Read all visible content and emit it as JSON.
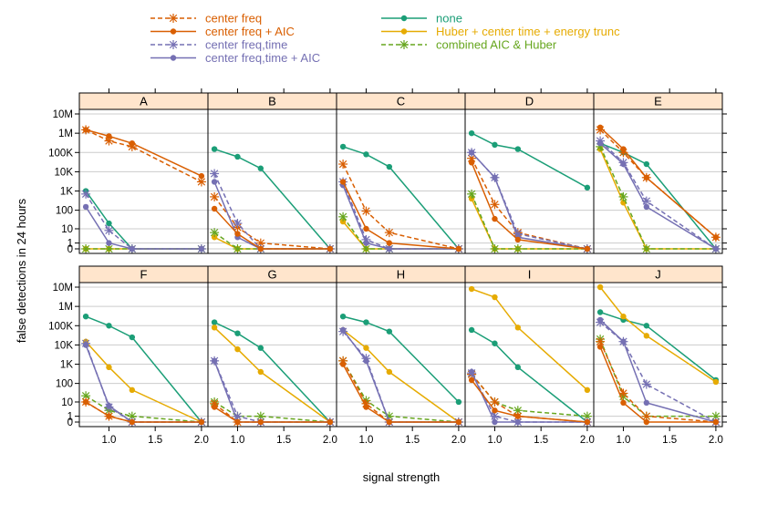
{
  "chart_data": {
    "type": "line",
    "xlabel": "signal strength",
    "ylabel": "false detections in 24 hours",
    "x": [
      0.75,
      1.0,
      1.25,
      2.0
    ],
    "x_ticks": [
      1.0,
      1.5,
      2.0
    ],
    "x_tick_labels": [
      "1.0",
      "1.5",
      "2.0"
    ],
    "xlim": [
      0.68,
      2.07
    ],
    "y_scale": "log(1+y)",
    "y_ticks": [
      0,
      1,
      10,
      100,
      1000,
      10000,
      100000,
      1000000,
      10000000
    ],
    "y_tick_labels": [
      "0",
      "1",
      "10",
      "100",
      "1K",
      "10K",
      "100K",
      "1M",
      "10M"
    ],
    "ylim": [
      0,
      10000000
    ],
    "legend": {
      "placement": "top",
      "left": [
        {
          "name": "center freq",
          "line": "dashed",
          "marker": "star",
          "color": "#d95f02"
        },
        {
          "name": "center freq + AIC",
          "line": "solid",
          "marker": "dot",
          "color": "#d95f02"
        },
        {
          "name": "center freq,time",
          "line": "dashed",
          "marker": "star",
          "color": "#7570b3"
        },
        {
          "name": "center freq,time + AIC",
          "line": "solid",
          "marker": "dot",
          "color": "#7570b3"
        }
      ],
      "right": [
        {
          "name": "none",
          "line": "solid",
          "marker": "dot",
          "color": "#1b9e77"
        },
        {
          "name": "Huber + center time + energy trunc",
          "line": "solid",
          "marker": "dot",
          "color": "#e6ab02"
        },
        {
          "name": "combined AIC & Huber",
          "line": "dashed",
          "marker": "star",
          "color": "#66a61e"
        }
      ]
    },
    "series_styles": {
      "none": {
        "color": "#1b9e77",
        "dash": false,
        "marker": "dot"
      },
      "cf": {
        "color": "#d95f02",
        "dash": true,
        "marker": "star"
      },
      "cfa": {
        "color": "#d95f02",
        "dash": false,
        "marker": "dot"
      },
      "cft": {
        "color": "#7570b3",
        "dash": true,
        "marker": "star"
      },
      "cfta": {
        "color": "#7570b3",
        "dash": false,
        "marker": "dot"
      },
      "huber": {
        "color": "#e6ab02",
        "dash": false,
        "marker": "dot"
      },
      "comb": {
        "color": "#66a61e",
        "dash": true,
        "marker": "star"
      }
    },
    "panels": [
      {
        "label": "A",
        "series": {
          "cf": [
            1500000,
            400000,
            200000,
            3000
          ],
          "cfa": [
            1500000,
            700000,
            300000,
            6000
          ],
          "cft": [
            700,
            8,
            0,
            0
          ],
          "cfta": [
            150,
            1,
            0,
            0
          ],
          "none": [
            1000,
            20,
            0,
            0
          ],
          "huber": [
            0,
            0,
            0,
            0
          ],
          "comb": [
            0,
            0,
            0,
            0
          ]
        }
      },
      {
        "label": "B",
        "series": {
          "none": [
            150000,
            60000,
            15000,
            0
          ],
          "cf": [
            500,
            12,
            1,
            0
          ],
          "cfa": [
            120,
            5,
            0,
            0
          ],
          "cft": [
            8000,
            20,
            0,
            0
          ],
          "cfta": [
            3000,
            3,
            0,
            0
          ],
          "huber": [
            3,
            0,
            0,
            0
          ],
          "comb": [
            6,
            0,
            0,
            0
          ]
        }
      },
      {
        "label": "C",
        "series": {
          "none": [
            200000,
            80000,
            18000,
            0
          ],
          "cf": [
            25000,
            90,
            6,
            0
          ],
          "cfa": [
            3000,
            10,
            1,
            0
          ],
          "cft": [
            3000,
            2,
            0,
            0
          ],
          "cfta": [
            2000,
            1,
            0,
            0
          ],
          "huber": [
            25,
            0,
            0,
            0
          ],
          "comb": [
            45,
            0,
            0,
            0
          ]
        }
      },
      {
        "label": "D",
        "series": {
          "none": [
            1000000,
            250000,
            150000,
            1500
          ],
          "cf": [
            50000,
            200,
            6,
            0
          ],
          "cfa": [
            30000,
            35,
            2,
            0
          ],
          "cft": [
            100000,
            5000,
            5,
            0
          ],
          "cfta": [
            100000,
            5000,
            3,
            0
          ],
          "huber": [
            400,
            0,
            0,
            0
          ],
          "comb": [
            700,
            0,
            0,
            0
          ]
        }
      },
      {
        "label": "E",
        "series": {
          "none": [
            300000,
            100000,
            25000,
            0
          ],
          "cf": [
            1500000,
            100000,
            5000,
            3
          ],
          "cfa": [
            2000000,
            150000,
            5000,
            3
          ],
          "cft": [
            400000,
            30000,
            300,
            0
          ],
          "cfta": [
            300000,
            25000,
            150,
            0
          ],
          "huber": [
            150000,
            250,
            0,
            0
          ],
          "comb": [
            200000,
            500,
            0,
            0
          ]
        }
      },
      {
        "label": "F",
        "series": {
          "none": [
            300000,
            100000,
            25000,
            0
          ],
          "cf": [
            10,
            1,
            0,
            0
          ],
          "cfa": [
            10,
            1,
            0,
            0
          ],
          "cft": [
            12000,
            5,
            0,
            0
          ],
          "cfta": [
            10000,
            6,
            0,
            0
          ],
          "huber": [
            15000,
            700,
            45,
            0
          ],
          "comb": [
            22,
            3,
            1,
            0
          ]
        }
      },
      {
        "label": "G",
        "series": {
          "none": [
            150000,
            40000,
            7000,
            0
          ],
          "cf": [
            8,
            0,
            0,
            0
          ],
          "cfa": [
            5,
            0,
            0,
            0
          ],
          "cft": [
            1500,
            1,
            0,
            0
          ],
          "cfta": [
            1500,
            0,
            0,
            0
          ],
          "huber": [
            80000,
            6000,
            400,
            0
          ],
          "comb": [
            10,
            1,
            1,
            0
          ]
        }
      },
      {
        "label": "H",
        "series": {
          "none": [
            300000,
            150000,
            50000,
            10
          ],
          "cf": [
            1500,
            8,
            0,
            0
          ],
          "cfa": [
            1000,
            5,
            0,
            0
          ],
          "cft": [
            50000,
            2000,
            0,
            0
          ],
          "cfta": [
            60000,
            1500,
            0,
            0
          ],
          "huber": [
            60000,
            7000,
            400,
            0
          ],
          "comb": [
            1500,
            12,
            1,
            0
          ]
        }
      },
      {
        "label": "I",
        "series": {
          "none": [
            60000,
            12000,
            700,
            0
          ],
          "cf": [
            300,
            10,
            1,
            0
          ],
          "cfa": [
            150,
            3,
            1,
            0
          ],
          "cft": [
            350,
            1,
            0,
            0
          ],
          "cfta": [
            400,
            0,
            0,
            0
          ],
          "huber": [
            8000000,
            3000000,
            80000,
            45
          ],
          "comb": [
            300,
            10,
            3,
            1
          ]
        }
      },
      {
        "label": "J",
        "series": {
          "none": [
            500000,
            200000,
            100000,
            150
          ],
          "cf": [
            15000,
            30,
            1,
            0
          ],
          "cfa": [
            8000,
            9,
            0,
            0
          ],
          "cft": [
            150000,
            15000,
            90,
            0
          ],
          "cfta": [
            200000,
            15000,
            9,
            0
          ],
          "huber": [
            10000000,
            300000,
            30000,
            120
          ],
          "comb": [
            20000,
            20,
            1,
            1
          ]
        }
      }
    ]
  }
}
